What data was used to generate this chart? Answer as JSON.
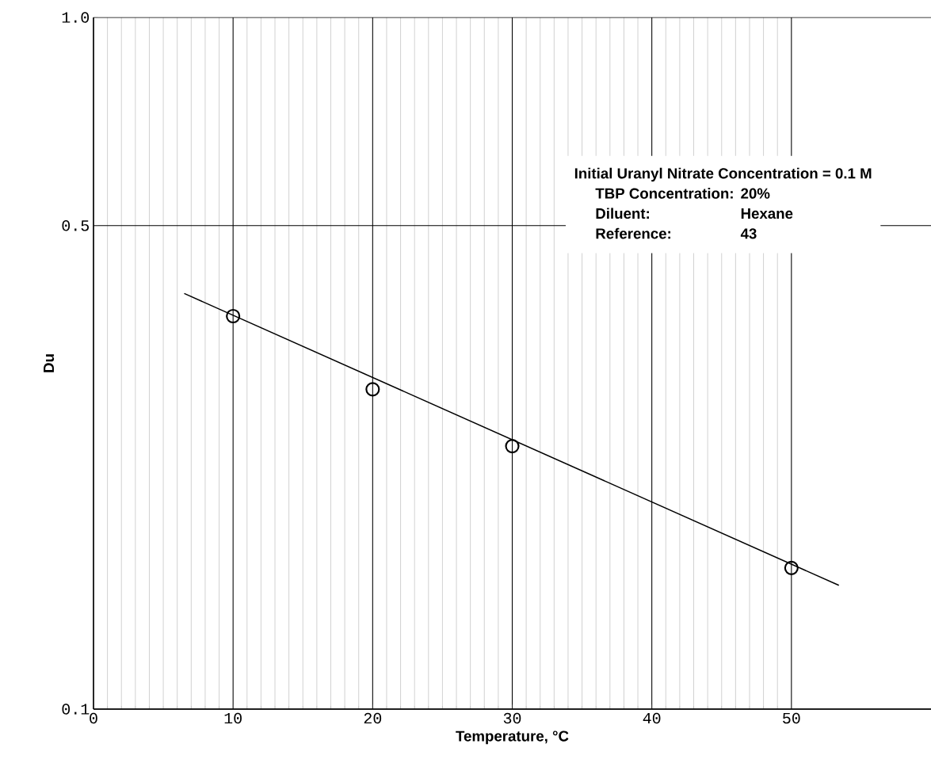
{
  "chart_data": {
    "type": "scatter",
    "xlabel": "Temperature, °C",
    "ylabel": "Du",
    "log": "y",
    "grid": true,
    "xlim": [
      0,
      60
    ],
    "xticks": [
      0,
      10,
      20,
      30,
      40,
      50
    ],
    "marker": "circle",
    "ylim": [
      0.1,
      1
    ],
    "yticks": [
      0.1,
      0.5,
      {
        "value": 1,
        "label": "1.0"
      }
    ],
    "annotations": [
      "Initial Uranyl Nitrate Concentration = 0.1 M",
      "TBP Concentration:",
      "20%",
      "Diluent:",
      "Hexane",
      "Reference:",
      "43"
    ],
    "series": [
      {
        "color": "#000000",
        "x": [
          10,
          20,
          30,
          50
        ],
        "values": [
          0.37,
          0.29,
          0.24,
          0.16
        ]
      },
      {
        "type": "line",
        "marker": "none",
        "color": "#000000",
        "x": [
          6.5,
          53.4
        ],
        "values": [
          0.399,
          0.151
        ]
      }
    ]
  }
}
